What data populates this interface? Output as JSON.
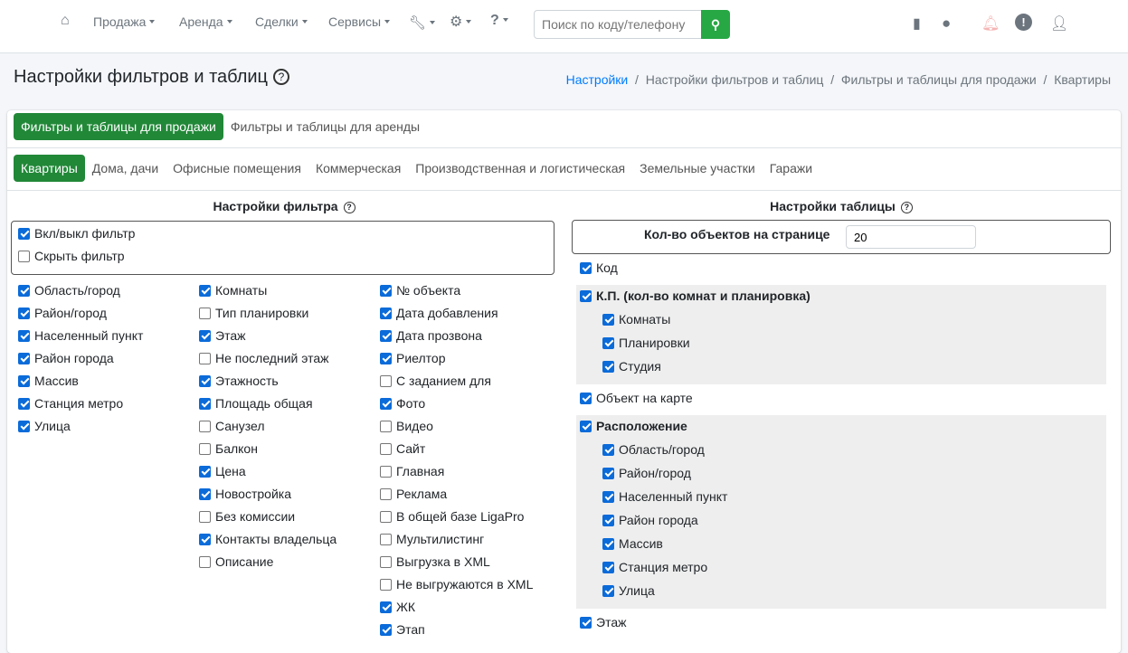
{
  "nav": {
    "items": [
      "Продажа",
      "Аренда",
      "Сделки",
      "Сервисы"
    ],
    "search_placeholder": "Поиск по коду/телефону"
  },
  "page": {
    "title": "Настройки фильтров и таблиц",
    "breadcrumb": [
      "Настройки",
      "Настройки фильтров и таблиц",
      "Фильтры и таблицы для продажи",
      "Квартиры"
    ]
  },
  "tabs1": [
    "Фильтры и таблицы для продажи",
    "Фильтры и таблицы для аренды"
  ],
  "tabs2": [
    "Квартиры",
    "Дома, дачи",
    "Офисные помещения",
    "Коммерческая",
    "Производственная и логистическая",
    "Земельные участки",
    "Гаражи"
  ],
  "filter": {
    "heading": "Настройки фильтра",
    "toggles": [
      {
        "label": "Вкл/выкл фильтр",
        "checked": true
      },
      {
        "label": "Скрыть фильтр",
        "checked": false
      }
    ],
    "columns": [
      [
        {
          "label": "Область/город",
          "checked": true
        },
        {
          "label": "Район/город",
          "checked": true
        },
        {
          "label": "Населенный пункт",
          "checked": true
        },
        {
          "label": "Район города",
          "checked": true
        },
        {
          "label": "Массив",
          "checked": true
        },
        {
          "label": "Станция метро",
          "checked": true
        },
        {
          "label": "Улица",
          "checked": true
        }
      ],
      [
        {
          "label": "Комнаты",
          "checked": true
        },
        {
          "label": "Тип планировки",
          "checked": false
        },
        {
          "label": "Этаж",
          "checked": true
        },
        {
          "label": "Не последний этаж",
          "checked": false
        },
        {
          "label": "Этажность",
          "checked": true
        },
        {
          "label": "Площадь общая",
          "checked": true
        },
        {
          "label": "Санузел",
          "checked": false
        },
        {
          "label": "Балкон",
          "checked": false
        },
        {
          "label": "Цена",
          "checked": true
        },
        {
          "label": "Новостройка",
          "checked": true
        },
        {
          "label": "Без комиссии",
          "checked": false
        },
        {
          "label": "Контакты владельца",
          "checked": true
        },
        {
          "label": "Описание",
          "checked": false
        }
      ],
      [
        {
          "label": "№ объекта",
          "checked": true
        },
        {
          "label": "Дата добавления",
          "checked": true
        },
        {
          "label": "Дата прозвона",
          "checked": true
        },
        {
          "label": "Риелтор",
          "checked": true
        },
        {
          "label": "С заданием для",
          "checked": false
        },
        {
          "label": "Фото",
          "checked": true
        },
        {
          "label": "Видео",
          "checked": false
        },
        {
          "label": "Сайт",
          "checked": false
        },
        {
          "label": "Главная",
          "checked": false
        },
        {
          "label": "Реклама",
          "checked": false
        },
        {
          "label": "В общей базе LigaPro",
          "checked": false
        },
        {
          "label": "Мультилистинг",
          "checked": false
        },
        {
          "label": "Выгрузка в XML",
          "checked": false
        },
        {
          "label": "Не выгружаются в XML",
          "checked": false
        },
        {
          "label": "ЖК",
          "checked": true
        },
        {
          "label": "Этап",
          "checked": true
        }
      ]
    ]
  },
  "table": {
    "heading": "Настройки таблицы",
    "per_page_label": "Кол-во объектов на странице",
    "per_page_value": "20",
    "items": [
      {
        "label": "Код",
        "checked": true
      },
      {
        "label": "К.П. (кол-во комнат и планировка)",
        "checked": true,
        "children": [
          {
            "label": "Комнаты",
            "checked": true
          },
          {
            "label": "Планировки",
            "checked": true
          },
          {
            "label": "Студия",
            "checked": true
          }
        ]
      },
      {
        "label": "Объект на карте",
        "checked": true
      },
      {
        "label": "Расположение",
        "checked": true,
        "children": [
          {
            "label": "Область/город",
            "checked": true
          },
          {
            "label": "Район/город",
            "checked": true
          },
          {
            "label": "Населенный пункт",
            "checked": true
          },
          {
            "label": "Район города",
            "checked": true
          },
          {
            "label": "Массив",
            "checked": true
          },
          {
            "label": "Станция метро",
            "checked": true
          },
          {
            "label": "Улица",
            "checked": true
          }
        ]
      },
      {
        "label": "Этаж",
        "checked": true
      }
    ]
  },
  "colors": {
    "accent": "#218838",
    "link": "#007bff",
    "checkbox": "#0b6bd9"
  }
}
